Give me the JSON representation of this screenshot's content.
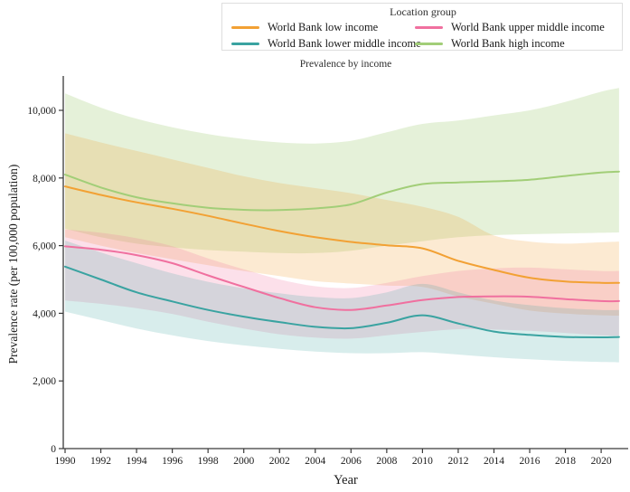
{
  "chart_data": {
    "type": "line",
    "title": "Prevalence by income",
    "xlabel": "Year",
    "ylabel": "Prevalence rate (per 100,000 population)",
    "legend_title": "Location group",
    "legend_position": "top",
    "grid": false,
    "band_note": "each line has a shaded uncertainty band (upper/lower bounds below)",
    "axis_color": "#3a3a3a",
    "text_color": "#1a1a1a",
    "xlim": [
      1990,
      2021
    ],
    "ylim": [
      0,
      11000
    ],
    "x": [
      1990,
      1992,
      1994,
      1996,
      1998,
      2000,
      2002,
      2004,
      2006,
      2008,
      2010,
      2012,
      2014,
      2016,
      2018,
      2020,
      2021
    ],
    "x_tick_values": [
      1990,
      1992,
      1994,
      1996,
      1998,
      2000,
      2002,
      2004,
      2006,
      2008,
      2010,
      2012,
      2014,
      2016,
      2018,
      2020
    ],
    "x_tick_labels": [
      "1990",
      "1992",
      "1994",
      "1996",
      "1998",
      "2000",
      "2002",
      "2004",
      "2006",
      "2008",
      "2010",
      "2012",
      "2014",
      "2016",
      "2018",
      "2020"
    ],
    "y_tick_values": [
      0,
      2000,
      4000,
      6000,
      8000,
      10000
    ],
    "y_tick_labels": [
      "0",
      "2,000",
      "4,000",
      "6,000",
      "8,000",
      "10,000"
    ],
    "series": [
      {
        "name": "World Bank low income",
        "color": "#F2A134",
        "band_opacity": 0.22,
        "values": [
          7750,
          7500,
          7280,
          7090,
          6880,
          6650,
          6430,
          6250,
          6110,
          6010,
          5920,
          5550,
          5280,
          5050,
          4940,
          4900,
          4900
        ],
        "upper": [
          9320,
          9050,
          8800,
          8550,
          8300,
          8050,
          7850,
          7700,
          7550,
          7350,
          7150,
          6850,
          6300,
          6120,
          6060,
          6100,
          6120
        ],
        "lower": [
          6250,
          6000,
          5780,
          5600,
          5420,
          5250,
          5100,
          4950,
          4880,
          4820,
          4780,
          4500,
          4280,
          4080,
          3990,
          3940,
          3930
        ]
      },
      {
        "name": "World Bank lower middle income",
        "color": "#3AA3A1",
        "band_opacity": 0.2,
        "values": [
          5380,
          5000,
          4620,
          4350,
          4100,
          3900,
          3740,
          3600,
          3560,
          3720,
          3940,
          3700,
          3460,
          3360,
          3300,
          3290,
          3300
        ],
        "upper": [
          6150,
          5800,
          5480,
          5180,
          4930,
          4740,
          4590,
          4480,
          4450,
          4620,
          4870,
          4620,
          4380,
          4240,
          4150,
          4100,
          4100
        ],
        "lower": [
          4050,
          3800,
          3550,
          3350,
          3180,
          3050,
          2950,
          2870,
          2820,
          2820,
          2850,
          2780,
          2700,
          2640,
          2590,
          2560,
          2550
        ]
      },
      {
        "name": "World Bank upper middle income",
        "color": "#F0709F",
        "band_opacity": 0.22,
        "values": [
          5980,
          5880,
          5720,
          5480,
          5120,
          4780,
          4450,
          4180,
          4100,
          4230,
          4390,
          4480,
          4500,
          4490,
          4420,
          4360,
          4360
        ],
        "upper": [
          6480,
          6380,
          6220,
          5980,
          5620,
          5300,
          5000,
          4800,
          4750,
          4900,
          5100,
          5250,
          5330,
          5350,
          5300,
          5250,
          5250
        ],
        "lower": [
          4380,
          4280,
          4150,
          3980,
          3750,
          3550,
          3380,
          3280,
          3250,
          3350,
          3450,
          3530,
          3520,
          3480,
          3420,
          3350,
          3340
        ]
      },
      {
        "name": "World Bank high income",
        "color": "#A2CE78",
        "band_opacity": 0.28,
        "values": [
          8100,
          7720,
          7430,
          7250,
          7120,
          7060,
          7050,
          7100,
          7220,
          7570,
          7820,
          7870,
          7900,
          7950,
          8060,
          8160,
          8190
        ],
        "upper": [
          10500,
          10080,
          9750,
          9500,
          9300,
          9150,
          9050,
          9020,
          9100,
          9350,
          9600,
          9700,
          9850,
          10000,
          10250,
          10550,
          10660
        ],
        "lower": [
          6500,
          6250,
          6060,
          5950,
          5870,
          5820,
          5780,
          5780,
          5850,
          6000,
          6130,
          6250,
          6310,
          6340,
          6360,
          6380,
          6390
        ]
      }
    ],
    "legend_order": [
      0,
      2,
      1,
      3
    ],
    "band_draw_order": [
      3,
      0,
      2,
      1
    ]
  }
}
